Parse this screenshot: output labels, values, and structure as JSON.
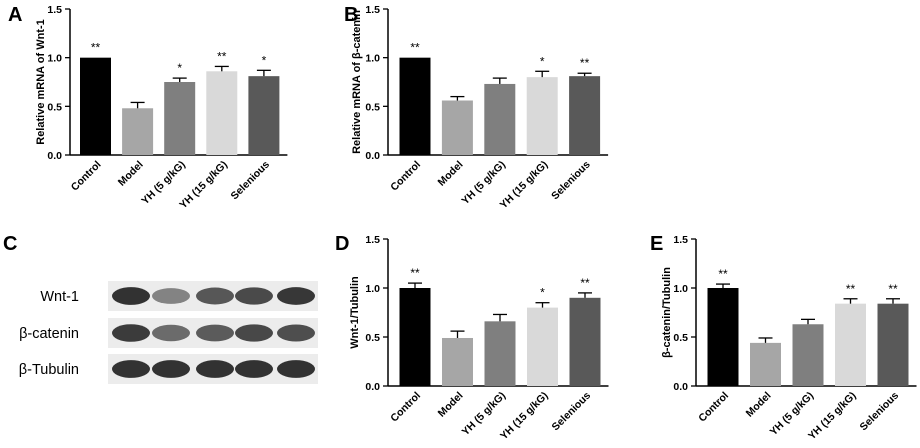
{
  "panels": [
    {
      "letter": "A"
    },
    {
      "letter": "B"
    },
    {
      "letter": "C"
    },
    {
      "letter": "D"
    },
    {
      "letter": "E"
    }
  ],
  "categories": [
    "Control",
    "Model",
    "YH (5 g/kG)",
    "YH (15 g/kG)",
    "Selenious"
  ],
  "bar_colors": [
    "#000000",
    "#a6a6a6",
    "#7f7f7f",
    "#d9d9d9",
    "#595959"
  ],
  "chart_data": [
    {
      "panel": "A",
      "type": "bar",
      "categories": [
        "Control",
        "Model",
        "YH (5 g/kG)",
        "YH (15 g/kG)",
        "Selenious"
      ],
      "values": [
        1.0,
        0.48,
        0.75,
        0.86,
        0.81
      ],
      "errors": [
        0.0,
        0.06,
        0.04,
        0.05,
        0.06
      ],
      "significance": [
        "**",
        "",
        "*",
        "**",
        "*"
      ],
      "ylabel": "Relative mRNA of Wnt-1",
      "ylim": [
        0,
        1.5
      ],
      "yticks": [
        "0.0",
        "0.5",
        "1.0",
        "1.5"
      ]
    },
    {
      "panel": "B",
      "type": "bar",
      "categories": [
        "Control",
        "Model",
        "YH (5 g/kG)",
        "YH (15 g/kG)",
        "Selenious"
      ],
      "values": [
        1.0,
        0.56,
        0.73,
        0.8,
        0.81
      ],
      "errors": [
        0.0,
        0.04,
        0.06,
        0.06,
        0.03
      ],
      "significance": [
        "**",
        "",
        "",
        "*",
        "**"
      ],
      "ylabel": "Relative mRNA of β-catenin",
      "ylim": [
        0,
        1.5
      ],
      "yticks": [
        "0.0",
        "0.5",
        "1.0",
        "1.5"
      ]
    },
    {
      "panel": "D",
      "type": "bar",
      "categories": [
        "Control",
        "Model",
        "YH (5 g/kG)",
        "YH (15 g/kG)",
        "Selenious"
      ],
      "values": [
        1.0,
        0.49,
        0.66,
        0.8,
        0.9
      ],
      "errors": [
        0.05,
        0.07,
        0.07,
        0.05,
        0.05
      ],
      "significance": [
        "**",
        "",
        "",
        "*",
        "**"
      ],
      "ylabel": "Wnt-1/Tubulin",
      "ylim": [
        0,
        1.5
      ],
      "yticks": [
        "0.0",
        "0.5",
        "1.0",
        "1.5"
      ]
    },
    {
      "panel": "E",
      "type": "bar",
      "categories": [
        "Control",
        "Model",
        "YH (5 g/kG)",
        "YH (15 g/kG)",
        "Selenious"
      ],
      "values": [
        1.0,
        0.44,
        0.63,
        0.84,
        0.84
      ],
      "errors": [
        0.04,
        0.05,
        0.05,
        0.05,
        0.05
      ],
      "significance": [
        "**",
        "",
        "",
        "**",
        "**"
      ],
      "ylabel": "β-catenin/Tubulin",
      "ylim": [
        0,
        1.5
      ],
      "yticks": [
        "0.0",
        "0.5",
        "1.0",
        "1.5"
      ]
    }
  ],
  "blot": {
    "rows": [
      {
        "label": "Wnt-1",
        "intensity": [
          0.95,
          0.45,
          0.72,
          0.8,
          0.92
        ]
      },
      {
        "label": "β-catenin",
        "intensity": [
          0.9,
          0.6,
          0.7,
          0.82,
          0.78
        ]
      },
      {
        "label": "β-Tubulin",
        "intensity": [
          0.95,
          0.95,
          0.95,
          0.95,
          0.95
        ]
      }
    ]
  }
}
